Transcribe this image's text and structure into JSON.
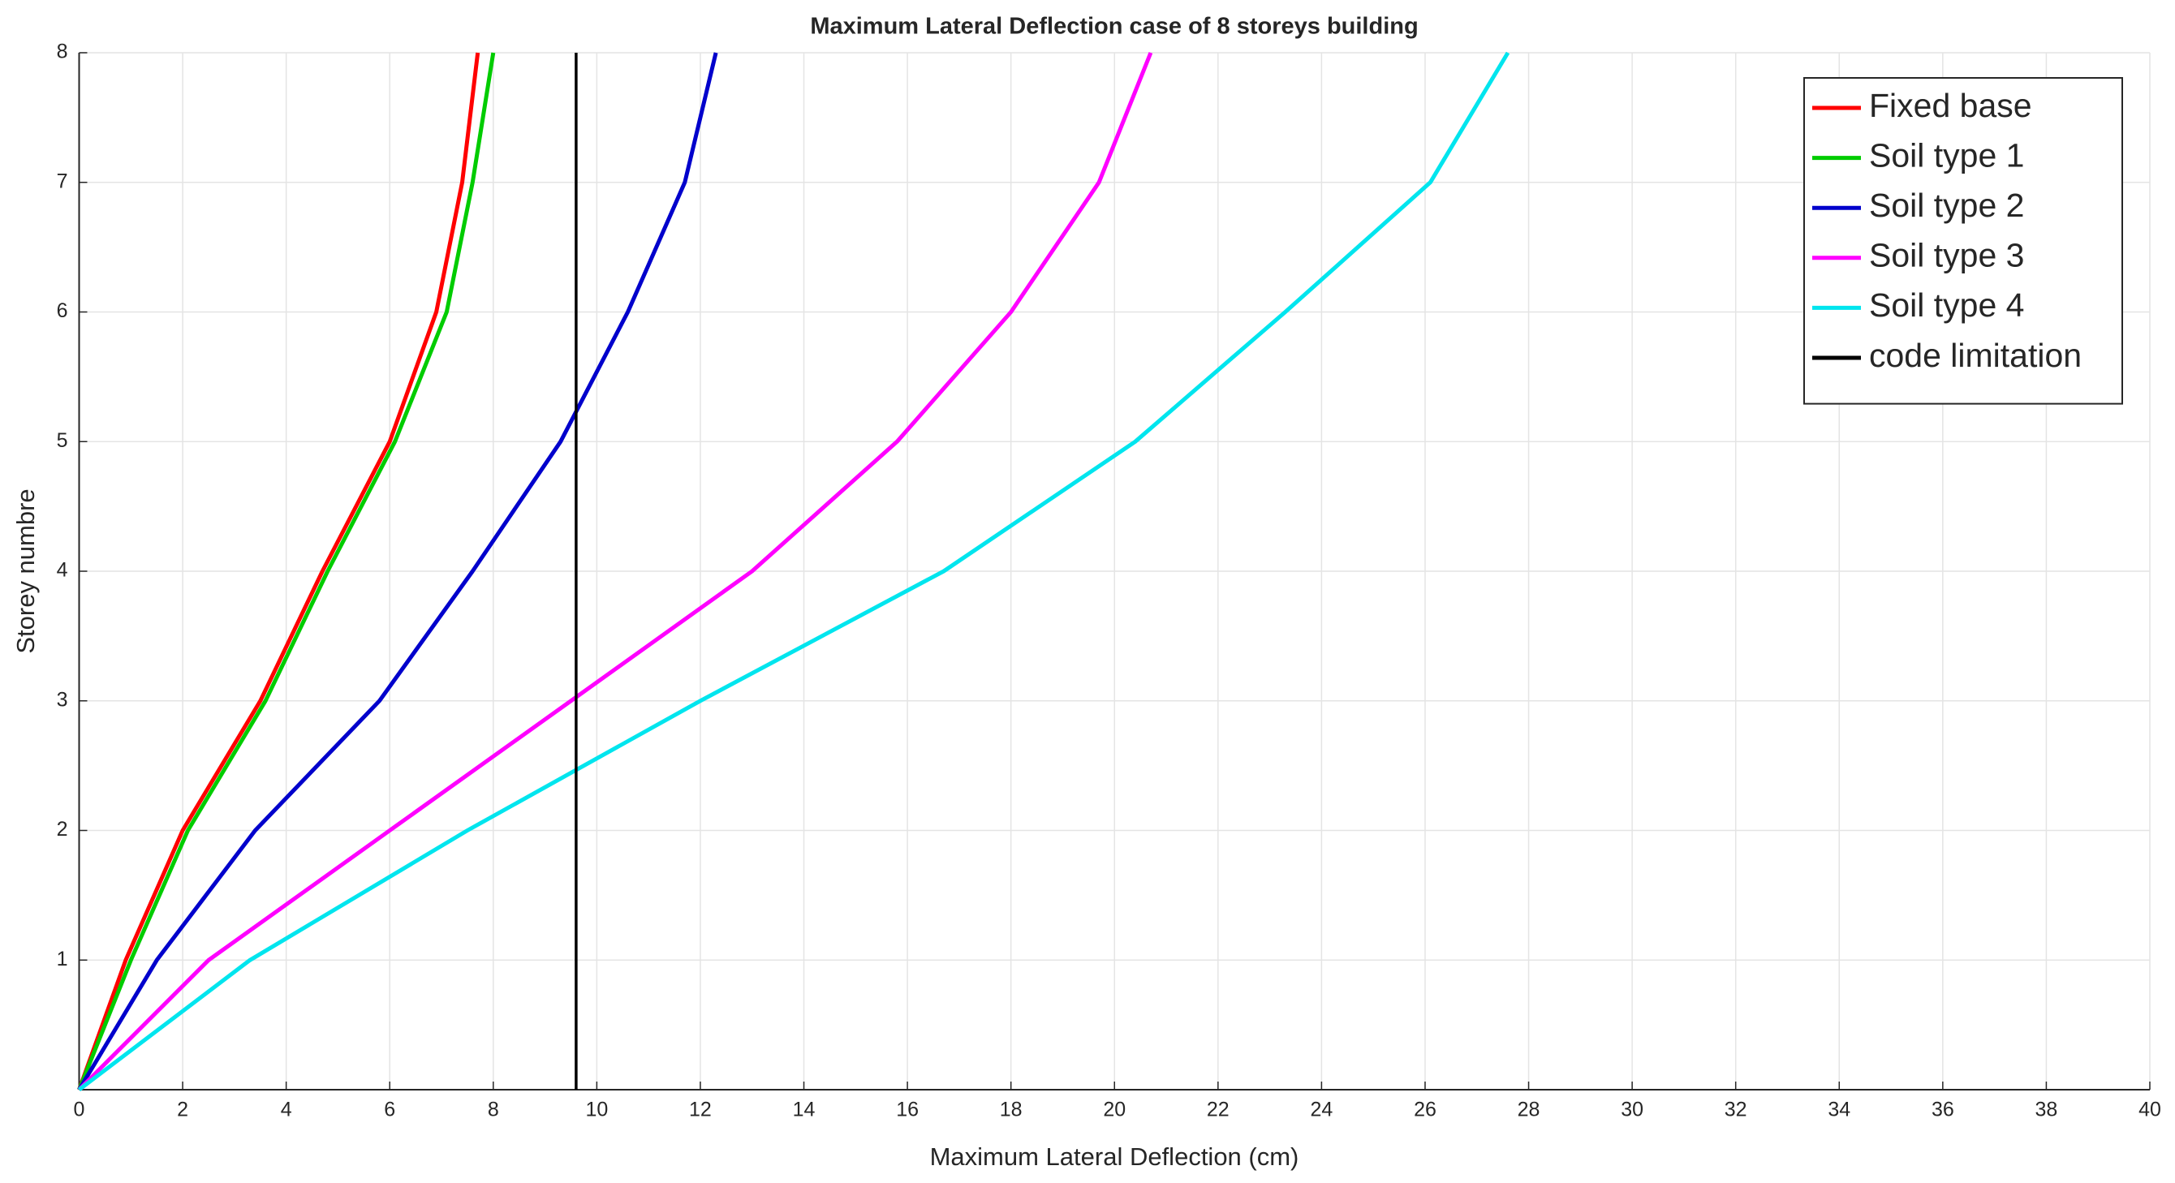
{
  "chart_data": {
    "type": "line",
    "title": "Maximum Lateral Deflection case of 8 storeys building",
    "xlabel": "Maximum Lateral Deflection (cm)",
    "ylabel": "Storey numbre",
    "xlim": [
      0,
      40
    ],
    "ylim": [
      0,
      8
    ],
    "xticks": [
      0,
      2,
      4,
      6,
      8,
      10,
      12,
      14,
      16,
      18,
      20,
      22,
      24,
      26,
      28,
      30,
      32,
      34,
      36,
      38,
      40
    ],
    "yticks": [
      1,
      2,
      3,
      4,
      5,
      6,
      7,
      8
    ],
    "grid": true,
    "legend": "upper right",
    "series": [
      {
        "name": "Fixed base",
        "color": "#ff0000",
        "x": [
          0,
          0.9,
          2.0,
          3.5,
          4.7,
          6.0,
          6.9,
          7.4,
          7.7
        ],
        "values": [
          0,
          1,
          2,
          3,
          4,
          5,
          6,
          7,
          8
        ]
      },
      {
        "name": "Soil type 1",
        "color": "#00cc00",
        "x": [
          0,
          1.0,
          2.1,
          3.6,
          4.8,
          6.1,
          7.1,
          7.6,
          8.0
        ],
        "values": [
          0,
          1,
          2,
          3,
          4,
          5,
          6,
          7,
          8
        ]
      },
      {
        "name": "Soil type 2",
        "color": "#0000cc",
        "x": [
          0,
          1.5,
          3.4,
          5.8,
          7.6,
          9.3,
          10.6,
          11.7,
          12.3
        ],
        "values": [
          0,
          1,
          2,
          3,
          4,
          5,
          6,
          7,
          8
        ]
      },
      {
        "name": "Soil type 3",
        "color": "#ff00ff",
        "x": [
          0,
          2.5,
          6.0,
          9.5,
          13.0,
          15.8,
          18.0,
          19.7,
          20.7
        ],
        "values": [
          0,
          1,
          2,
          3,
          4,
          5,
          6,
          7,
          8
        ]
      },
      {
        "name": "Soil type 4",
        "color": "#00e5ee",
        "x": [
          0,
          3.3,
          7.5,
          12.0,
          16.7,
          20.4,
          23.3,
          26.1,
          27.6
        ],
        "values": [
          0,
          1,
          2,
          3,
          4,
          5,
          6,
          7,
          8
        ]
      },
      {
        "name": "code limitation",
        "color": "#000000",
        "x": [
          9.6,
          9.6
        ],
        "values": [
          0,
          8
        ]
      }
    ]
  }
}
